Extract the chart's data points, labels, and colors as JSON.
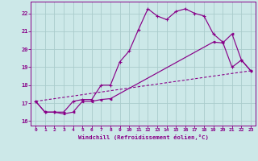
{
  "xlabel": "Windchill (Refroidissement éolien,°C)",
  "background_color": "#cce8e8",
  "grid_color": "#aacccc",
  "line_color": "#880088",
  "xlim": [
    -0.5,
    23.5
  ],
  "ylim": [
    15.75,
    22.65
  ],
  "yticks": [
    16,
    17,
    18,
    19,
    20,
    21,
    22
  ],
  "xticks": [
    0,
    1,
    2,
    3,
    4,
    5,
    6,
    7,
    8,
    9,
    10,
    11,
    12,
    13,
    14,
    15,
    16,
    17,
    18,
    19,
    20,
    21,
    22,
    23
  ],
  "line1_x": [
    0,
    1,
    2,
    3,
    4,
    5,
    6,
    7,
    8,
    9,
    10,
    11,
    12,
    13,
    14,
    15,
    16,
    17,
    18,
    19,
    20,
    21,
    22,
    23
  ],
  "line1_y": [
    17.1,
    16.5,
    16.5,
    16.5,
    17.1,
    17.2,
    17.2,
    18.0,
    18.0,
    19.3,
    19.9,
    21.1,
    22.25,
    21.85,
    21.65,
    22.1,
    22.25,
    22.0,
    21.85,
    20.85,
    20.4,
    19.0,
    19.4,
    18.8
  ],
  "line2_x": [
    0,
    1,
    2,
    3,
    4,
    5,
    6,
    7,
    8,
    19,
    20,
    21,
    22,
    23
  ],
  "line2_y": [
    17.1,
    16.5,
    16.5,
    16.4,
    16.5,
    17.1,
    17.1,
    17.2,
    17.25,
    20.4,
    20.35,
    20.85,
    19.4,
    18.8
  ],
  "line3_x": [
    0,
    23
  ],
  "line3_y": [
    17.1,
    18.8
  ]
}
